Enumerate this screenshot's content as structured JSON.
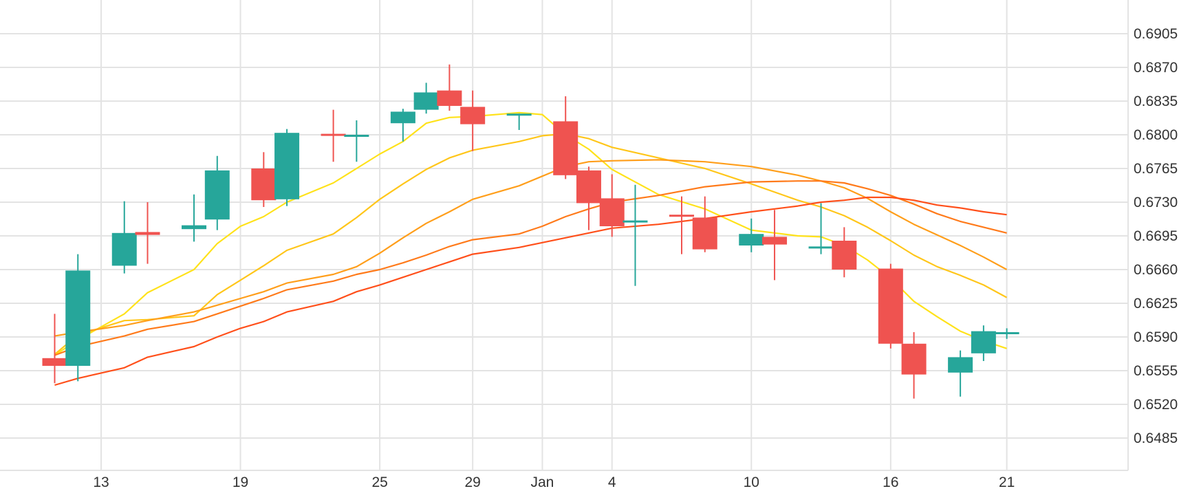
{
  "chart_data": {
    "type": "candlestick",
    "x_tick_labels": [
      {
        "label": "13",
        "date": "2023-12-13"
      },
      {
        "label": "19",
        "date": "2023-12-19"
      },
      {
        "label": "25",
        "date": "2023-12-25"
      },
      {
        "label": "29",
        "date": "2023-12-29"
      },
      {
        "label": "Jan",
        "date": "2024-01-01"
      },
      {
        "label": "4",
        "date": "2024-01-04"
      },
      {
        "label": "10",
        "date": "2024-01-10"
      },
      {
        "label": "16",
        "date": "2024-01-16"
      },
      {
        "label": "21",
        "date": "2024-01-21"
      }
    ],
    "y_tick_labels": [
      "0.6905",
      "0.6870",
      "0.6835",
      "0.6800",
      "0.6765",
      "0.6730",
      "0.6695",
      "0.6660",
      "0.6625",
      "0.6590",
      "0.6555",
      "0.6520",
      "0.6485"
    ],
    "ylim": [
      0.645,
      0.6935
    ],
    "y_axis_position": "right",
    "grid": true,
    "colors": {
      "up": "#26a69a",
      "down": "#ef5350",
      "grid": "#e3e3e3",
      "text": "#333333"
    },
    "candles": [
      {
        "date": "2023-12-11",
        "open": 0.6568,
        "high": 0.6614,
        "low": 0.6542,
        "close": 0.656
      },
      {
        "date": "2023-12-12",
        "open": 0.656,
        "high": 0.6676,
        "low": 0.6544,
        "close": 0.6659
      },
      {
        "date": "2023-12-14",
        "open": 0.6664,
        "high": 0.6731,
        "low": 0.6656,
        "close": 0.6698
      },
      {
        "date": "2023-12-15",
        "open": 0.6699,
        "high": 0.673,
        "low": 0.6666,
        "close": 0.6696
      },
      {
        "date": "2023-12-17",
        "open": 0.6702,
        "high": 0.6738,
        "low": 0.6689,
        "close": 0.6706
      },
      {
        "date": "2023-12-18",
        "open": 0.6712,
        "high": 0.6778,
        "low": 0.6701,
        "close": 0.6763
      },
      {
        "date": "2023-12-20",
        "open": 0.6765,
        "high": 0.6782,
        "low": 0.6725,
        "close": 0.6732
      },
      {
        "date": "2023-12-21",
        "open": 0.6733,
        "high": 0.6806,
        "low": 0.6726,
        "close": 0.6802
      },
      {
        "date": "2023-12-23",
        "open": 0.6801,
        "high": 0.6826,
        "low": 0.6772,
        "close": 0.6799
      },
      {
        "date": "2023-12-24",
        "open": 0.68,
        "high": 0.6815,
        "low": 0.6772,
        "close": 0.68
      },
      {
        "date": "2023-12-26",
        "open": 0.6812,
        "high": 0.6827,
        "low": 0.6793,
        "close": 0.6824
      },
      {
        "date": "2023-12-27",
        "open": 0.6826,
        "high": 0.6854,
        "low": 0.6822,
        "close": 0.6844
      },
      {
        "date": "2023-12-28",
        "open": 0.6846,
        "high": 0.6873,
        "low": 0.6825,
        "close": 0.683
      },
      {
        "date": "2023-12-29",
        "open": 0.6829,
        "high": 0.6846,
        "low": 0.6783,
        "close": 0.6811
      },
      {
        "date": "2023-12-31",
        "open": 0.6822,
        "high": 0.6822,
        "low": 0.6805,
        "close": 0.6822
      },
      {
        "date": "2024-01-02",
        "open": 0.6814,
        "high": 0.684,
        "low": 0.6754,
        "close": 0.6758
      },
      {
        "date": "2024-01-03",
        "open": 0.6763,
        "high": 0.6767,
        "low": 0.6701,
        "close": 0.6729
      },
      {
        "date": "2024-01-04",
        "open": 0.6734,
        "high": 0.6759,
        "low": 0.6694,
        "close": 0.6705
      },
      {
        "date": "2024-01-05",
        "open": 0.671,
        "high": 0.6748,
        "low": 0.6643,
        "close": 0.6711
      },
      {
        "date": "2024-01-07",
        "open": 0.6717,
        "high": 0.6736,
        "low": 0.6676,
        "close": 0.6716
      },
      {
        "date": "2024-01-08",
        "open": 0.6714,
        "high": 0.6736,
        "low": 0.6678,
        "close": 0.6681
      },
      {
        "date": "2024-01-10",
        "open": 0.6685,
        "high": 0.6713,
        "low": 0.6678,
        "close": 0.6697
      },
      {
        "date": "2024-01-11",
        "open": 0.6694,
        "high": 0.6722,
        "low": 0.6649,
        "close": 0.6686
      },
      {
        "date": "2024-01-13",
        "open": 0.6684,
        "high": 0.6729,
        "low": 0.6676,
        "close": 0.6684
      },
      {
        "date": "2024-01-14",
        "open": 0.669,
        "high": 0.6704,
        "low": 0.6652,
        "close": 0.666
      },
      {
        "date": "2024-01-16",
        "open": 0.6661,
        "high": 0.6666,
        "low": 0.6578,
        "close": 0.6583
      },
      {
        "date": "2024-01-17",
        "open": 0.6583,
        "high": 0.6595,
        "low": 0.6526,
        "close": 0.6551
      },
      {
        "date": "2024-01-19",
        "open": 0.6553,
        "high": 0.6576,
        "low": 0.6528,
        "close": 0.6569
      },
      {
        "date": "2024-01-20",
        "open": 0.6573,
        "high": 0.6602,
        "low": 0.6565,
        "close": 0.6596
      },
      {
        "date": "2024-01-21",
        "open": 0.6594,
        "high": 0.6599,
        "low": 0.6588,
        "close": 0.6595
      }
    ],
    "series": [
      {
        "color": "#ffe21a",
        "points": [
          [
            "2023-12-11",
            0.6571
          ],
          [
            "2023-12-12",
            0.6587
          ],
          [
            "2023-12-14",
            0.6614
          ],
          [
            "2023-12-15",
            0.6636
          ],
          [
            "2023-12-17",
            0.666
          ],
          [
            "2023-12-18",
            0.6687
          ],
          [
            "2023-12-19",
            0.6705
          ],
          [
            "2023-12-20",
            0.6715
          ],
          [
            "2023-12-21",
            0.673
          ],
          [
            "2023-12-23",
            0.675
          ],
          [
            "2023-12-24",
            0.6765
          ],
          [
            "2023-12-25",
            0.678
          ],
          [
            "2023-12-26",
            0.6793
          ],
          [
            "2023-12-27",
            0.6812
          ],
          [
            "2023-12-28",
            0.6818
          ],
          [
            "2023-12-29",
            0.6819
          ],
          [
            "2023-12-31",
            0.6823
          ],
          [
            "2024-01-01",
            0.6821
          ],
          [
            "2024-01-02",
            0.68
          ],
          [
            "2024-01-03",
            0.6785
          ],
          [
            "2024-01-04",
            0.6764
          ],
          [
            "2024-01-06",
            0.6738
          ],
          [
            "2024-01-08",
            0.6723
          ],
          [
            "2024-01-10",
            0.6701
          ],
          [
            "2024-01-12",
            0.6695
          ],
          [
            "2024-01-13",
            0.6694
          ],
          [
            "2024-01-14",
            0.6685
          ],
          [
            "2024-01-15",
            0.667
          ],
          [
            "2024-01-16",
            0.6651
          ],
          [
            "2024-01-17",
            0.6627
          ],
          [
            "2024-01-18",
            0.6611
          ],
          [
            "2024-01-19",
            0.6596
          ],
          [
            "2024-01-20",
            0.6586
          ],
          [
            "2024-01-21",
            0.6578
          ]
        ]
      },
      {
        "color": "#ffc61a",
        "points": [
          [
            "2023-12-11",
            0.6572
          ],
          [
            "2023-12-12",
            0.6592
          ],
          [
            "2023-12-14",
            0.6607
          ],
          [
            "2023-12-15",
            0.6608
          ],
          [
            "2023-12-17",
            0.6612
          ],
          [
            "2023-12-18",
            0.6634
          ],
          [
            "2023-12-19",
            0.6649
          ],
          [
            "2023-12-20",
            0.6664
          ],
          [
            "2023-12-21",
            0.668
          ],
          [
            "2023-12-23",
            0.6697
          ],
          [
            "2023-12-24",
            0.6714
          ],
          [
            "2023-12-25",
            0.6733
          ],
          [
            "2023-12-26",
            0.6749
          ],
          [
            "2023-12-27",
            0.6764
          ],
          [
            "2023-12-28",
            0.6776
          ],
          [
            "2023-12-29",
            0.6784
          ],
          [
            "2023-12-31",
            0.6793
          ],
          [
            "2024-01-01",
            0.6799
          ],
          [
            "2024-01-02",
            0.6801
          ],
          [
            "2024-01-03",
            0.6796
          ],
          [
            "2024-01-04",
            0.6787
          ],
          [
            "2024-01-06",
            0.6776
          ],
          [
            "2024-01-08",
            0.6765
          ],
          [
            "2024-01-10",
            0.6749
          ],
          [
            "2024-01-12",
            0.6732
          ],
          [
            "2024-01-13",
            0.6725
          ],
          [
            "2024-01-14",
            0.6716
          ],
          [
            "2024-01-15",
            0.6704
          ],
          [
            "2024-01-16",
            0.669
          ],
          [
            "2024-01-17",
            0.6675
          ],
          [
            "2024-01-18",
            0.6663
          ],
          [
            "2024-01-19",
            0.6654
          ],
          [
            "2024-01-20",
            0.6644
          ],
          [
            "2024-01-21",
            0.6631
          ]
        ]
      },
      {
        "color": "#ff9e1a",
        "points": [
          [
            "2023-12-11",
            0.6591
          ],
          [
            "2023-12-12",
            0.6595
          ],
          [
            "2023-12-14",
            0.6602
          ],
          [
            "2023-12-15",
            0.6607
          ],
          [
            "2023-12-17",
            0.6616
          ],
          [
            "2023-12-18",
            0.6623
          ],
          [
            "2023-12-19",
            0.663
          ],
          [
            "2023-12-20",
            0.6637
          ],
          [
            "2023-12-21",
            0.6646
          ],
          [
            "2023-12-23",
            0.6655
          ],
          [
            "2023-12-24",
            0.6663
          ],
          [
            "2023-12-25",
            0.6677
          ],
          [
            "2023-12-26",
            0.6693
          ],
          [
            "2023-12-27",
            0.6708
          ],
          [
            "2023-12-28",
            0.672
          ],
          [
            "2023-12-29",
            0.6733
          ],
          [
            "2023-12-31",
            0.6747
          ],
          [
            "2024-01-01",
            0.6757
          ],
          [
            "2024-01-02",
            0.6767
          ],
          [
            "2024-01-03",
            0.6772
          ],
          [
            "2024-01-04",
            0.6773
          ],
          [
            "2024-01-06",
            0.6774
          ],
          [
            "2024-01-08",
            0.6772
          ],
          [
            "2024-01-10",
            0.6767
          ],
          [
            "2024-01-12",
            0.6758
          ],
          [
            "2024-01-13",
            0.6752
          ],
          [
            "2024-01-14",
            0.6745
          ],
          [
            "2024-01-15",
            0.6734
          ],
          [
            "2024-01-16",
            0.672
          ],
          [
            "2024-01-17",
            0.6707
          ],
          [
            "2024-01-18",
            0.6696
          ],
          [
            "2024-01-19",
            0.6685
          ],
          [
            "2024-01-20",
            0.6673
          ],
          [
            "2024-01-21",
            0.666
          ]
        ]
      },
      {
        "color": "#ff7a1a",
        "points": [
          [
            "2023-12-11",
            0.6571
          ],
          [
            "2023-12-12",
            0.658
          ],
          [
            "2023-12-14",
            0.6591
          ],
          [
            "2023-12-15",
            0.6598
          ],
          [
            "2023-12-17",
            0.6606
          ],
          [
            "2023-12-18",
            0.6614
          ],
          [
            "2023-12-19",
            0.6622
          ],
          [
            "2023-12-20",
            0.663
          ],
          [
            "2023-12-21",
            0.6639
          ],
          [
            "2023-12-23",
            0.6648
          ],
          [
            "2023-12-24",
            0.6655
          ],
          [
            "2023-12-25",
            0.666
          ],
          [
            "2023-12-26",
            0.6667
          ],
          [
            "2023-12-27",
            0.6675
          ],
          [
            "2023-12-28",
            0.6684
          ],
          [
            "2023-12-29",
            0.6691
          ],
          [
            "2023-12-31",
            0.6697
          ],
          [
            "2024-01-01",
            0.6705
          ],
          [
            "2024-01-02",
            0.6715
          ],
          [
            "2024-01-03",
            0.6723
          ],
          [
            "2024-01-04",
            0.673
          ],
          [
            "2024-01-06",
            0.6737
          ],
          [
            "2024-01-08",
            0.6746
          ],
          [
            "2024-01-10",
            0.6751
          ],
          [
            "2024-01-12",
            0.6752
          ],
          [
            "2024-01-13",
            0.6752
          ],
          [
            "2024-01-14",
            0.675
          ],
          [
            "2024-01-15",
            0.6744
          ],
          [
            "2024-01-16",
            0.6737
          ],
          [
            "2024-01-17",
            0.6728
          ],
          [
            "2024-01-18",
            0.6718
          ],
          [
            "2024-01-19",
            0.671
          ],
          [
            "2024-01-20",
            0.6704
          ],
          [
            "2024-01-21",
            0.6698
          ]
        ]
      },
      {
        "color": "#ff4f1a",
        "points": [
          [
            "2023-12-11",
            0.654
          ],
          [
            "2023-12-12",
            0.6547
          ],
          [
            "2023-12-14",
            0.6558
          ],
          [
            "2023-12-15",
            0.6569
          ],
          [
            "2023-12-17",
            0.658
          ],
          [
            "2023-12-18",
            0.659
          ],
          [
            "2023-12-19",
            0.6599
          ],
          [
            "2023-12-20",
            0.6606
          ],
          [
            "2023-12-21",
            0.6616
          ],
          [
            "2023-12-23",
            0.6627
          ],
          [
            "2023-12-24",
            0.6637
          ],
          [
            "2023-12-25",
            0.6644
          ],
          [
            "2023-12-26",
            0.6652
          ],
          [
            "2023-12-27",
            0.666
          ],
          [
            "2023-12-28",
            0.6668
          ],
          [
            "2023-12-29",
            0.6676
          ],
          [
            "2023-12-31",
            0.6683
          ],
          [
            "2024-01-01",
            0.6688
          ],
          [
            "2024-01-02",
            0.6693
          ],
          [
            "2024-01-03",
            0.6698
          ],
          [
            "2024-01-04",
            0.6703
          ],
          [
            "2024-01-06",
            0.6707
          ],
          [
            "2024-01-08",
            0.6713
          ],
          [
            "2024-01-10",
            0.672
          ],
          [
            "2024-01-12",
            0.6726
          ],
          [
            "2024-01-13",
            0.673
          ],
          [
            "2024-01-14",
            0.6732
          ],
          [
            "2024-01-15",
            0.6735
          ],
          [
            "2024-01-16",
            0.6735
          ],
          [
            "2024-01-17",
            0.6732
          ],
          [
            "2024-01-18",
            0.6727
          ],
          [
            "2024-01-19",
            0.6724
          ],
          [
            "2024-01-20",
            0.672
          ],
          [
            "2024-01-21",
            0.6717
          ]
        ]
      }
    ]
  }
}
